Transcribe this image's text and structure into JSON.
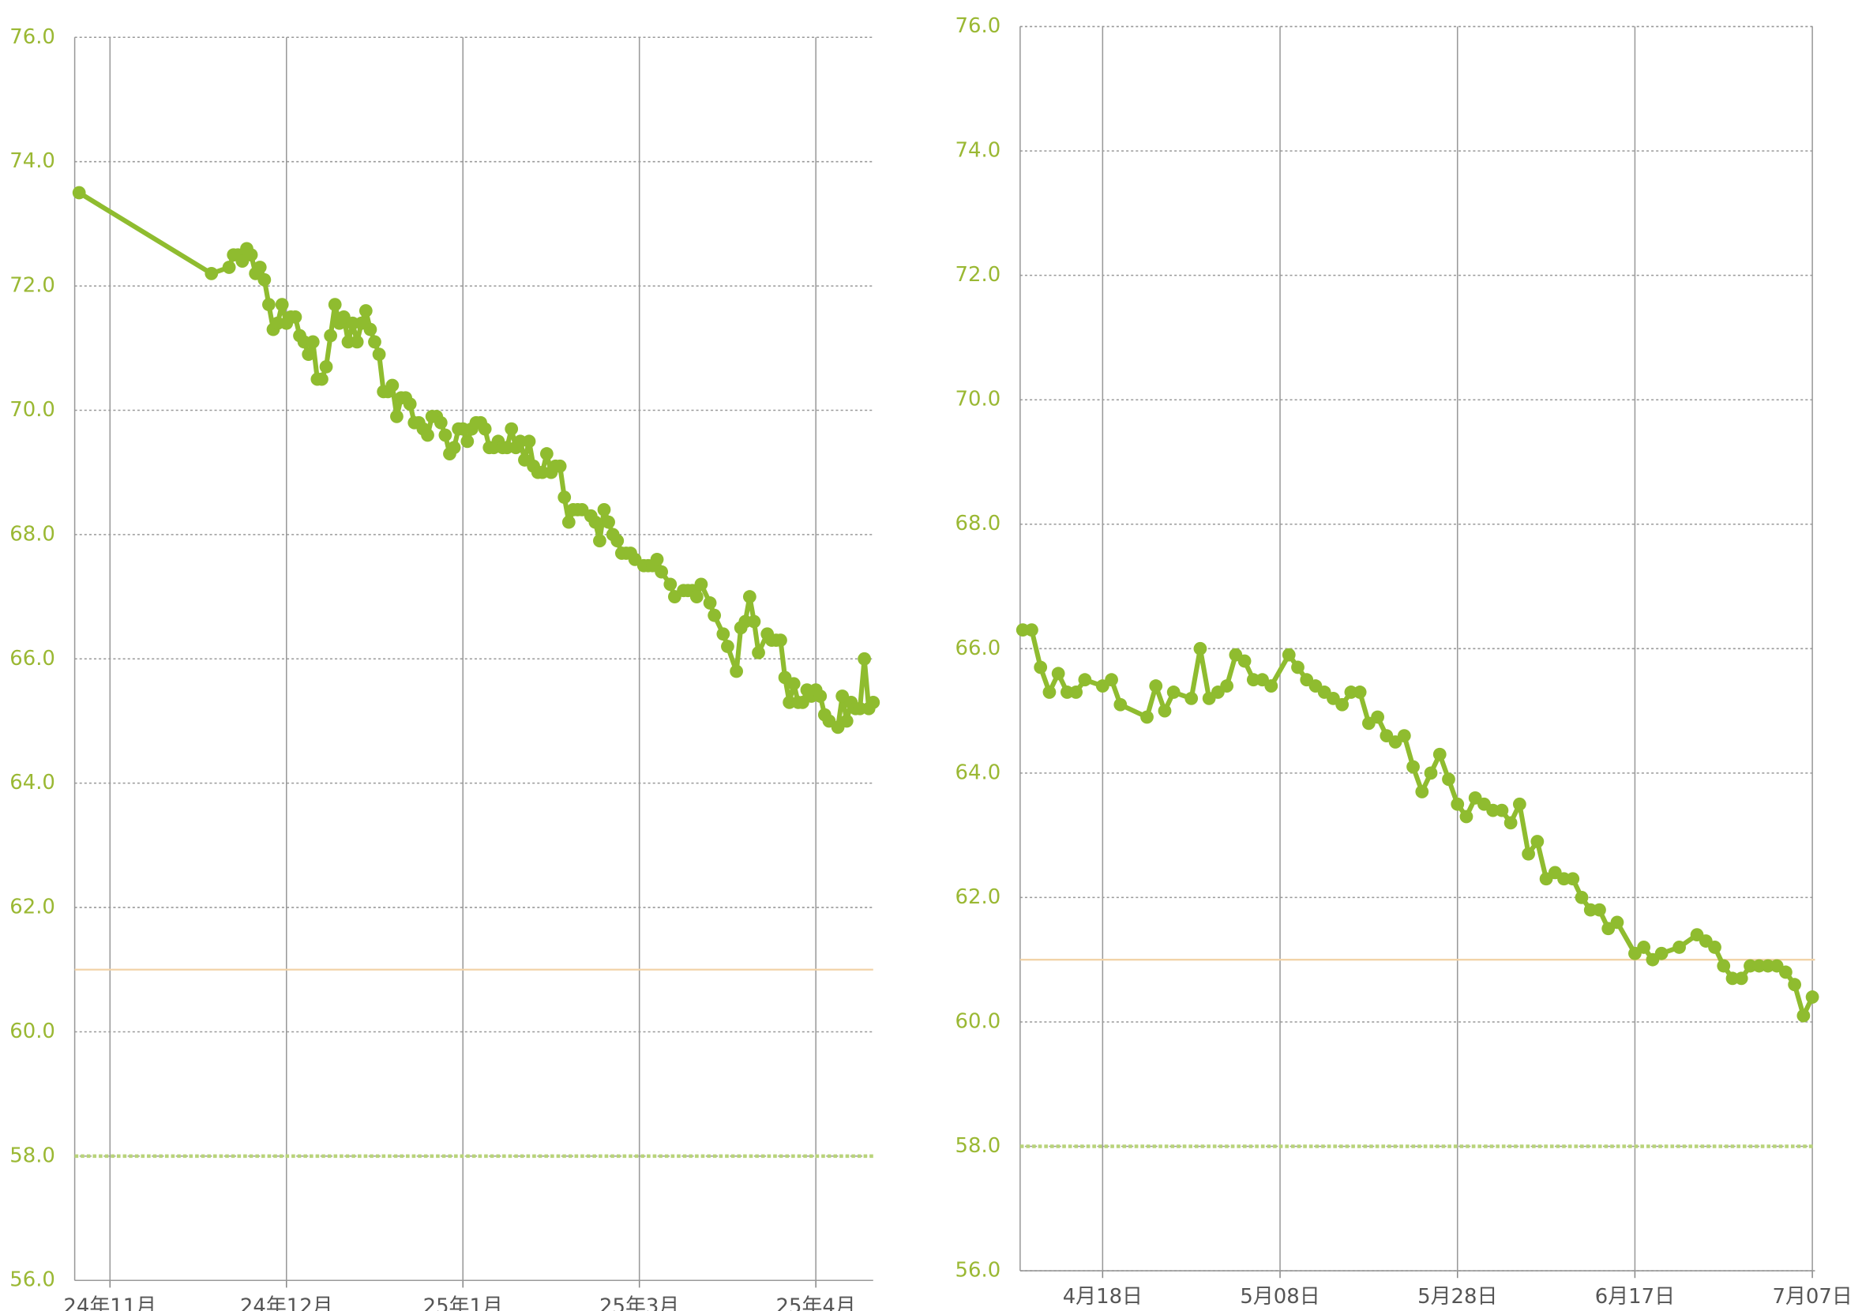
{
  "chart_data": [
    {
      "type": "line",
      "color": "#8fbc2f",
      "x": [
        -7,
        23,
        27,
        28,
        29,
        30,
        31,
        32,
        33,
        34,
        35,
        36,
        37,
        38,
        39,
        40,
        41,
        42,
        43,
        44,
        45,
        46,
        47,
        48,
        49,
        50,
        51,
        52,
        53,
        54,
        55,
        56,
        57,
        58,
        59,
        60,
        61,
        62,
        63,
        64,
        65,
        66,
        67,
        68,
        69,
        70,
        71,
        72,
        73,
        74,
        75,
        76,
        77,
        78,
        79,
        80,
        81,
        82,
        83,
        84,
        85,
        86,
        87,
        88,
        89,
        90,
        91,
        92,
        93,
        94,
        95,
        96,
        97,
        98,
        99,
        100,
        101,
        102,
        103,
        104,
        105,
        106,
        107,
        109,
        110,
        111,
        112,
        113,
        114,
        115,
        116,
        117,
        118,
        119,
        121,
        122,
        123,
        124,
        125,
        127,
        128,
        130,
        131,
        132,
        133,
        134,
        136,
        137,
        139,
        140,
        142,
        143,
        144,
        145,
        146,
        147,
        149,
        150,
        151,
        152,
        153,
        154,
        155,
        156,
        157,
        158,
        159,
        160,
        161,
        162,
        163,
        165,
        166,
        167,
        168,
        169,
        170,
        171,
        172,
        173
      ],
      "values": [
        73.5,
        72.2,
        72.3,
        72.5,
        72.5,
        72.4,
        72.6,
        72.5,
        72.2,
        72.3,
        72.1,
        71.7,
        71.3,
        71.4,
        71.7,
        71.4,
        71.5,
        71.5,
        71.2,
        71.1,
        70.9,
        71.1,
        70.5,
        70.5,
        70.7,
        71.2,
        71.7,
        71.4,
        71.5,
        71.1,
        71.4,
        71.1,
        71.4,
        71.6,
        71.3,
        71.1,
        70.9,
        70.3,
        70.3,
        70.4,
        69.9,
        70.2,
        70.2,
        70.1,
        69.8,
        69.8,
        69.7,
        69.6,
        69.9,
        69.9,
        69.8,
        69.6,
        69.3,
        69.4,
        69.7,
        69.7,
        69.5,
        69.7,
        69.8,
        69.8,
        69.7,
        69.4,
        69.4,
        69.5,
        69.4,
        69.4,
        69.7,
        69.4,
        69.5,
        69.2,
        69.5,
        69.1,
        69.0,
        69.0,
        69.3,
        69.0,
        69.1,
        69.1,
        68.6,
        68.2,
        68.4,
        68.4,
        68.4,
        68.3,
        68.2,
        67.9,
        68.4,
        68.2,
        68.0,
        67.9,
        67.7,
        67.7,
        67.7,
        67.6,
        67.5,
        67.5,
        67.5,
        67.6,
        67.4,
        67.2,
        67.0,
        67.1,
        67.1,
        67.1,
        67.0,
        67.2,
        66.9,
        66.7,
        66.4,
        66.2,
        65.8,
        66.5,
        66.6,
        67.0,
        66.6,
        66.1,
        66.4,
        66.3,
        66.3,
        66.3,
        65.7,
        65.3,
        65.6,
        65.3,
        65.3,
        65.5,
        65.4,
        65.5,
        65.4,
        65.1,
        65.0,
        64.9,
        65.4,
        65.0,
        65.3,
        65.2,
        65.2,
        66.0,
        65.2,
        65.3
      ],
      "xlim": [
        -8,
        173
      ],
      "xticks": [
        {
          "value": 0,
          "label": "24年11月"
        },
        {
          "value": 40,
          "label": "24年12月"
        },
        {
          "value": 80,
          "label": "25年1月"
        },
        {
          "value": 120,
          "label": "25年3月"
        },
        {
          "value": 160,
          "label": "25年4月"
        }
      ],
      "ylim": [
        56,
        76
      ],
      "yticks": [
        {
          "value": 56,
          "label": "56.0"
        },
        {
          "value": 58,
          "label": "58.0"
        },
        {
          "value": 60,
          "label": "60.0"
        },
        {
          "value": 62,
          "label": "62.0"
        },
        {
          "value": 64,
          "label": "64.0"
        },
        {
          "value": 66,
          "label": "66.0"
        },
        {
          "value": 68,
          "label": "68.0"
        },
        {
          "value": 70,
          "label": "70.0"
        },
        {
          "value": 72,
          "label": "72.0"
        },
        {
          "value": 74,
          "label": "74.0"
        },
        {
          "value": 76,
          "label": "76.0"
        }
      ],
      "reference_lines": [
        {
          "value": 61,
          "color": "#f2d3a8",
          "style": "solid"
        },
        {
          "value": 58,
          "color": "#b9d47a",
          "style": "dashed"
        }
      ],
      "grid": true
    },
    {
      "type": "line",
      "color": "#8fbc2f",
      "x": [
        -9,
        -8,
        -7,
        -6,
        -5,
        -4,
        -3,
        -2,
        0,
        1,
        2,
        5,
        6,
        7,
        8,
        10,
        11,
        12,
        13,
        14,
        15,
        16,
        17,
        18,
        19,
        21,
        22,
        23,
        24,
        25,
        26,
        27,
        28,
        29,
        30,
        31,
        32,
        33,
        34,
        35,
        36,
        37,
        38,
        39,
        40,
        41,
        42,
        43,
        44,
        45,
        46,
        47,
        48,
        49,
        50,
        51,
        52,
        53,
        54,
        55,
        56,
        57,
        58,
        60,
        61,
        62,
        63,
        65,
        67,
        68,
        69,
        70,
        71,
        72,
        73,
        74,
        75,
        76,
        77,
        78,
        79,
        80
      ],
      "values": [
        66.3,
        66.3,
        65.7,
        65.3,
        65.6,
        65.3,
        65.3,
        65.5,
        65.4,
        65.5,
        65.1,
        64.9,
        65.4,
        65.0,
        65.3,
        65.2,
        66.0,
        65.2,
        65.3,
        65.4,
        65.9,
        65.8,
        65.5,
        65.5,
        65.4,
        65.9,
        65.7,
        65.5,
        65.4,
        65.3,
        65.2,
        65.1,
        65.3,
        65.3,
        64.8,
        64.9,
        64.6,
        64.5,
        64.6,
        64.1,
        63.7,
        64.0,
        64.3,
        63.9,
        63.5,
        63.3,
        63.6,
        63.5,
        63.4,
        63.4,
        63.2,
        63.5,
        62.7,
        62.9,
        62.3,
        62.4,
        62.3,
        62.3,
        62.0,
        61.8,
        61.8,
        61.5,
        61.6,
        61.1,
        61.2,
        61.0,
        61.1,
        61.2,
        61.4,
        61.3,
        61.2,
        60.9,
        60.7,
        60.7,
        60.9,
        60.9,
        60.9,
        60.9,
        60.8,
        60.6,
        60.1,
        60.4
      ],
      "xlim": [
        -9.3,
        80.3
      ],
      "xticks": [
        {
          "value": 0,
          "label": "4月18日"
        },
        {
          "value": 20,
          "label": "5月08日"
        },
        {
          "value": 40,
          "label": "5月28日"
        },
        {
          "value": 60,
          "label": "6月17日"
        },
        {
          "value": 80,
          "label": "7月07日"
        }
      ],
      "ylim": [
        56,
        76
      ],
      "yticks": [
        {
          "value": 56,
          "label": "56.0"
        },
        {
          "value": 58,
          "label": "58.0"
        },
        {
          "value": 60,
          "label": "60.0"
        },
        {
          "value": 62,
          "label": "62.0"
        },
        {
          "value": 64,
          "label": "64.0"
        },
        {
          "value": 66,
          "label": "66.0"
        },
        {
          "value": 68,
          "label": "68.0"
        },
        {
          "value": 70,
          "label": "70.0"
        },
        {
          "value": 72,
          "label": "72.0"
        },
        {
          "value": 74,
          "label": "74.0"
        },
        {
          "value": 76,
          "label": "76.0"
        }
      ],
      "reference_lines": [
        {
          "value": 61,
          "color": "#f2d3a8",
          "style": "solid"
        },
        {
          "value": 58,
          "color": "#b9d47a",
          "style": "dashed"
        }
      ],
      "grid": true
    }
  ]
}
